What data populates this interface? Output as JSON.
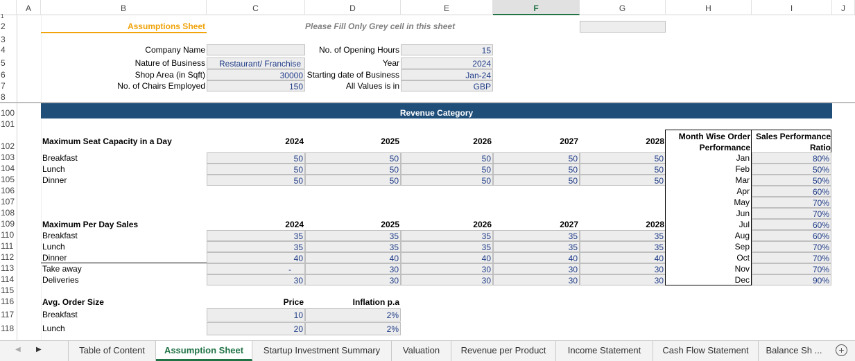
{
  "columns": [
    "A",
    "B",
    "C",
    "D",
    "E",
    "F",
    "G",
    "H",
    "I",
    "J"
  ],
  "selected_column": "F",
  "row_numbers": {
    "r1": "1",
    "r2": "2",
    "r3": "3",
    "r4": "4",
    "r5": "5",
    "r6": "6",
    "r7": "7",
    "r8": "8",
    "r100": "100",
    "r101": "101",
    "r102": "102",
    "r103": "103",
    "r104": "104",
    "r105": "105",
    "r106": "106",
    "r107": "107",
    "r108": "108",
    "r109": "109",
    "r110": "110",
    "r111": "111",
    "r112": "112",
    "r113": "113",
    "r114": "114",
    "r115": "115",
    "r116": "116",
    "r117": "117",
    "r118": "118"
  },
  "header": {
    "title": "Assumptions Sheet",
    "instruction": "Please Fill Only Grey cell in this sheet"
  },
  "info": {
    "company_name_label": "Company Name",
    "company_name_value": "",
    "nature_label": "Nature of Business",
    "nature_value": "Restaurant/ Franchise",
    "shop_area_label": "Shop Area (in Sqft)",
    "shop_area_value": "30000",
    "chairs_label": "No. of Chairs Employed",
    "chairs_value": "150",
    "opening_hours_label": "No. of Opening Hours",
    "opening_hours_value": "15",
    "year_label": "Year",
    "year_value": "2024",
    "start_date_label": "Starting date of Business",
    "start_date_value": "Jan-24",
    "values_in_label": "All Values is in",
    "values_in_value": "GBP"
  },
  "banner": "Revenue Category",
  "seat_capacity": {
    "title": "Maximum Seat Capacity in a Day",
    "years": [
      "2024",
      "2025",
      "2026",
      "2027",
      "2028"
    ],
    "rows": [
      {
        "label": "Breakfast",
        "values": [
          "50",
          "50",
          "50",
          "50",
          "50"
        ]
      },
      {
        "label": "Lunch",
        "values": [
          "50",
          "50",
          "50",
          "50",
          "50"
        ]
      },
      {
        "label": "Dinner",
        "values": [
          "50",
          "50",
          "50",
          "50",
          "50"
        ]
      }
    ]
  },
  "per_day_sales": {
    "title": "Maximum Per Day Sales",
    "years": [
      "2024",
      "2025",
      "2026",
      "2027",
      "2028"
    ],
    "rows": [
      {
        "label": "Breakfast",
        "values": [
          "35",
          "35",
          "35",
          "35",
          "35"
        ]
      },
      {
        "label": "Lunch",
        "values": [
          "35",
          "35",
          "35",
          "35",
          "35"
        ]
      },
      {
        "label": "Dinner",
        "values": [
          "40",
          "40",
          "40",
          "40",
          "40"
        ]
      },
      {
        "label": "Take away",
        "values": [
          "-",
          "30",
          "30",
          "30",
          "30"
        ]
      },
      {
        "label": "Deliveries",
        "values": [
          "30",
          "30",
          "30",
          "30",
          "30"
        ]
      }
    ]
  },
  "order_size": {
    "title": "Avg. Order Size",
    "price_label": "Price",
    "inflation_label": "Inflation p.a",
    "rows": [
      {
        "label": "Breakfast",
        "price": "10",
        "inflation": "2%"
      },
      {
        "label": "Lunch",
        "price": "20",
        "inflation": "2%"
      }
    ]
  },
  "monthly": {
    "header_left": "Month Wise Order Performance",
    "header_right": "Sales Performance Ratio",
    "rows": [
      {
        "month": "Jan",
        "ratio": "80%"
      },
      {
        "month": "Feb",
        "ratio": "50%"
      },
      {
        "month": "Mar",
        "ratio": "50%"
      },
      {
        "month": "Apr",
        "ratio": "60%"
      },
      {
        "month": "May",
        "ratio": "70%"
      },
      {
        "month": "Jun",
        "ratio": "70%"
      },
      {
        "month": "Jul",
        "ratio": "60%"
      },
      {
        "month": "Aug",
        "ratio": "60%"
      },
      {
        "month": "Sep",
        "ratio": "70%"
      },
      {
        "month": "Oct",
        "ratio": "70%"
      },
      {
        "month": "Nov",
        "ratio": "70%"
      },
      {
        "month": "Dec",
        "ratio": "90%"
      }
    ]
  },
  "sheet_tabs": [
    "Table of Content",
    "Assumption Sheet",
    "Startup Investment Summary",
    "Valuation",
    "Revenue per Product",
    "Income Statement",
    "Cash Flow Statement",
    "Balance Sh ..."
  ],
  "active_tab": "Assumption Sheet",
  "colors": {
    "accent": "#217346",
    "banner": "#1f4e79",
    "title_orange": "#f0a30a",
    "value_blue": "#1f3c88"
  }
}
